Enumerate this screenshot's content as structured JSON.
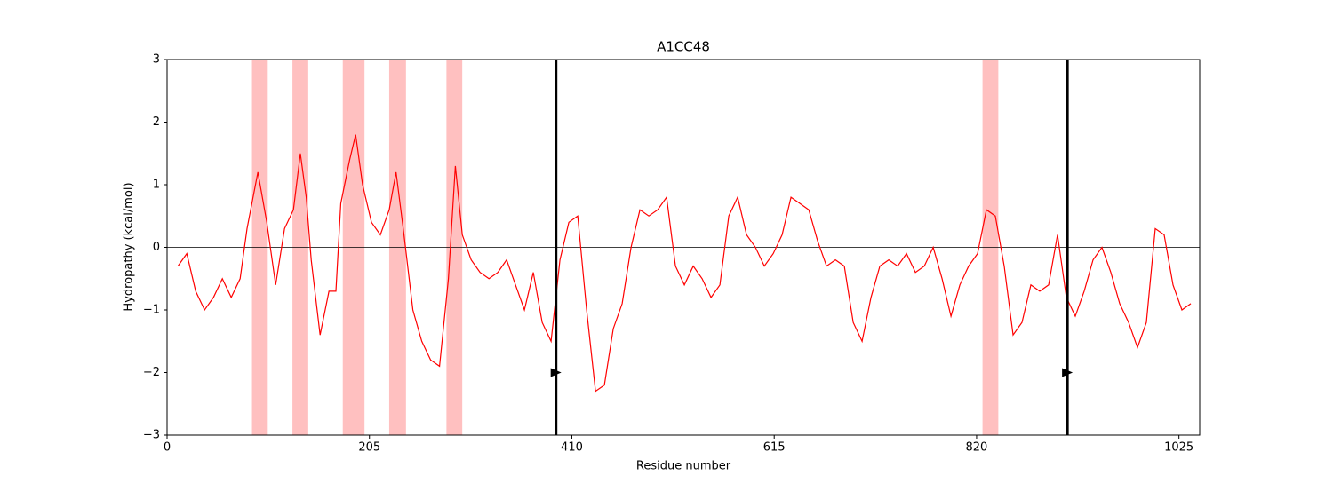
{
  "chart_data": {
    "type": "line",
    "title": "A1CC48",
    "x_label": "Residue number",
    "y_label": "Hydropathy (kcal/mol)",
    "x": [
      11,
      20,
      29,
      38,
      47,
      56,
      65,
      74,
      81,
      92,
      101,
      110,
      119,
      128,
      135,
      141,
      146,
      155,
      164,
      171,
      176,
      185,
      191,
      198,
      207,
      216,
      225,
      232,
      240,
      249,
      258,
      267,
      276,
      285,
      292,
      299,
      308,
      317,
      326,
      335,
      344,
      353,
      362,
      371,
      380,
      389,
      398,
      407,
      416,
      425,
      434,
      443,
      452,
      461,
      470,
      479,
      488,
      497,
      506,
      515,
      524,
      533,
      542,
      551,
      560,
      569,
      578,
      587,
      596,
      605,
      614,
      623,
      632,
      641,
      650,
      659,
      668,
      677,
      686,
      695,
      704,
      713,
      722,
      731,
      740,
      749,
      758,
      767,
      776,
      785,
      794,
      803,
      812,
      821,
      830,
      839,
      848,
      857,
      866,
      875,
      884,
      893,
      902,
      911,
      920,
      929,
      938,
      947,
      956,
      965,
      974,
      983,
      992,
      1001,
      1010,
      1019,
      1028,
      1037
    ],
    "values": [
      -0.3,
      -0.1,
      -0.7,
      -1.0,
      -0.8,
      -0.5,
      -0.8,
      -0.5,
      0.3,
      1.2,
      0.4,
      -0.6,
      0.3,
      0.6,
      1.5,
      0.8,
      -0.2,
      -1.4,
      -0.7,
      -0.7,
      0.7,
      1.4,
      1.8,
      1.0,
      0.4,
      0.2,
      0.6,
      1.2,
      0.2,
      -1.0,
      -1.5,
      -1.8,
      -1.9,
      -0.5,
      1.3,
      0.2,
      -0.2,
      -0.4,
      -0.5,
      -0.4,
      -0.2,
      -0.6,
      -1.0,
      -0.4,
      -1.2,
      -1.5,
      -0.2,
      0.4,
      0.5,
      -1.0,
      -2.3,
      -2.2,
      -1.3,
      -0.9,
      0.0,
      0.6,
      0.5,
      0.6,
      0.8,
      -0.3,
      -0.6,
      -0.3,
      -0.5,
      -0.8,
      -0.6,
      0.5,
      0.8,
      0.2,
      0.0,
      -0.3,
      -0.1,
      0.2,
      0.8,
      0.7,
      0.6,
      0.1,
      -0.3,
      -0.2,
      -0.3,
      -1.2,
      -1.5,
      -0.8,
      -0.3,
      -0.2,
      -0.3,
      -0.1,
      -0.4,
      -0.3,
      0.0,
      -0.5,
      -1.1,
      -0.6,
      -0.3,
      -0.1,
      0.6,
      0.5,
      -0.3,
      -1.4,
      -1.2,
      -0.6,
      -0.7,
      -0.6,
      0.2,
      -0.8,
      -1.1,
      -0.7,
      -0.2,
      0.0,
      -0.4,
      -0.9,
      -1.2,
      -1.6,
      -1.2,
      0.3,
      0.2,
      -0.6,
      -1.0,
      -0.9
    ],
    "color": "#ff0000",
    "xlim": [
      0,
      1046
    ],
    "ylim": [
      -3,
      3
    ],
    "xticks": [
      0,
      205,
      410,
      615,
      820,
      1025
    ],
    "yticks": [
      {
        "value": -3,
        "label": "−3"
      },
      {
        "value": -2,
        "label": "−2"
      },
      {
        "value": -1,
        "label": "−1"
      },
      0,
      1,
      2,
      3
    ],
    "shaded_regions": [
      [
        86,
        102
      ],
      [
        127,
        143
      ],
      [
        178,
        200
      ],
      [
        225,
        242
      ],
      [
        283,
        299
      ],
      [
        826,
        842
      ]
    ],
    "shade_color": "#ffc0c0",
    "vlines": [
      394,
      912
    ],
    "markers": [
      {
        "x": 394,
        "y": -2
      },
      {
        "x": 912,
        "y": -2
      }
    ],
    "hline": 0
  }
}
